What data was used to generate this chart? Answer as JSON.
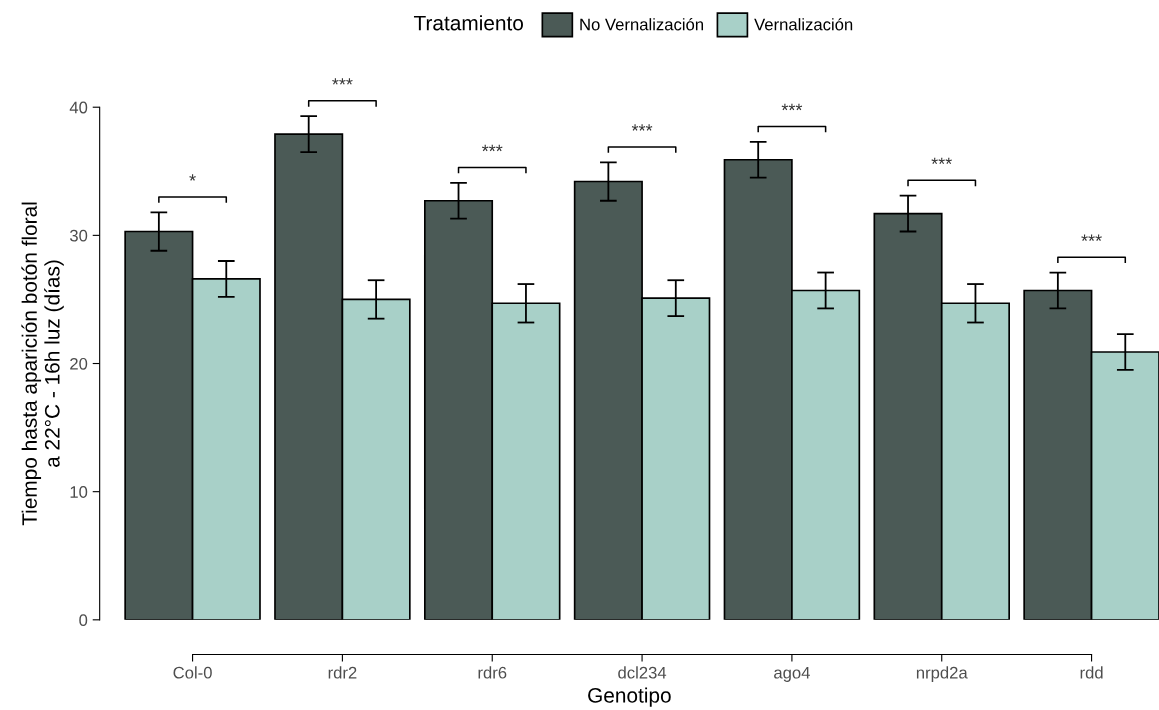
{
  "chart_data": {
    "type": "bar",
    "xlabel": "Genotipo",
    "ylabel": "Tiempo hasta aparición botón floral\na 22°C - 16h luz (días)",
    "legend_title": "Tratamiento",
    "legend": "top",
    "categories": [
      "Col-0",
      "rdr2",
      "rdr6",
      "dcl234",
      "ago4",
      "nrpd2a",
      "rdd"
    ],
    "series": [
      {
        "name": "No Vernalización",
        "color": "#4b5a56",
        "values": [
          30.3,
          37.9,
          32.7,
          34.2,
          35.9,
          31.7,
          25.7
        ],
        "errors": [
          1.5,
          1.4,
          1.4,
          1.5,
          1.4,
          1.4,
          1.4
        ]
      },
      {
        "name": "Vernalización",
        "color": "#a8d0c8",
        "values": [
          26.6,
          25.0,
          24.7,
          25.1,
          25.7,
          24.7,
          20.9
        ],
        "errors": [
          1.4,
          1.5,
          1.5,
          1.4,
          1.4,
          1.5,
          1.4
        ]
      }
    ],
    "ylim": [
      0,
      40
    ],
    "yticks": [
      0,
      10,
      20,
      30,
      40
    ],
    "grid": false,
    "annotations": [
      "*",
      "***",
      "***",
      "***",
      "***",
      "***",
      "***"
    ]
  }
}
